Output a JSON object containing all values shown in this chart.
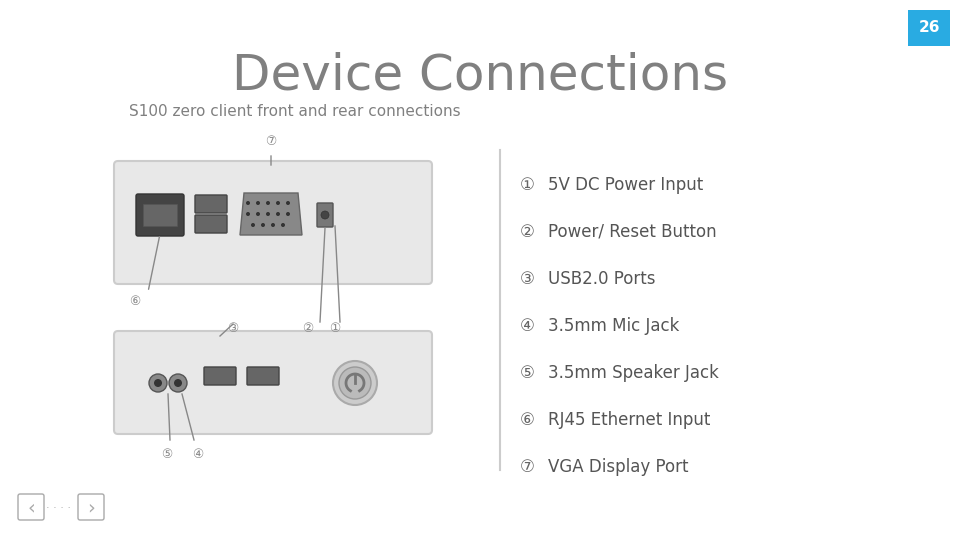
{
  "title": "Device Connections",
  "subtitle": "S100 zero client front and rear connections",
  "page_number": "26",
  "page_bg": "#ffffff",
  "page_num_bg": "#29abe2",
  "page_num_color": "#ffffff",
  "title_color": "#808080",
  "subtitle_color": "#808080",
  "connector_items": [
    {
      "num": "①",
      "text": "5V DC Power Input"
    },
    {
      "num": "②",
      "text": "Power/ Reset Button"
    },
    {
      "num": "③",
      "text": "USB2.0 Ports"
    },
    {
      "num": "④",
      "text": "3.5mm Mic Jack"
    },
    {
      "num": "⑤",
      "text": "3.5mm Speaker Jack"
    },
    {
      "num": "⑥",
      "text": "RJ45 Ethernet Input"
    },
    {
      "num": "⑦",
      "text": "VGA Display Port"
    }
  ],
  "device_color": "#e8e8e8",
  "device_border": "#cccccc",
  "port_color": "#aaaaaa",
  "port_dark": "#555555",
  "label_color": "#888888",
  "divider_color": "#cccccc",
  "nav_color": "#aaaaaa"
}
